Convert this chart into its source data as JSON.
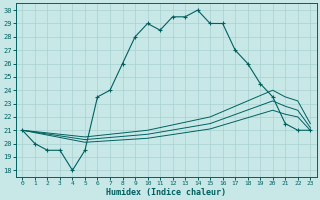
{
  "xlabel": "Humidex (Indice chaleur)",
  "bg_color": "#c8e8e8",
  "grid_color": "#a8d0d0",
  "line_color": "#006060",
  "xlim": [
    -0.5,
    23.5
  ],
  "ylim": [
    17.5,
    30.5
  ],
  "yticks": [
    18,
    19,
    20,
    21,
    22,
    23,
    24,
    25,
    26,
    27,
    28,
    29,
    30
  ],
  "xticks": [
    0,
    1,
    2,
    3,
    4,
    5,
    6,
    7,
    8,
    9,
    10,
    11,
    12,
    13,
    14,
    15,
    16,
    17,
    18,
    19,
    20,
    21,
    22,
    23
  ],
  "main_x": [
    0,
    1,
    2,
    3,
    4,
    5,
    6,
    7,
    8,
    9,
    10,
    11,
    12,
    13,
    14,
    15,
    16,
    17,
    18,
    19,
    20,
    21,
    22,
    23
  ],
  "main_y": [
    21.0,
    20.0,
    19.5,
    19.5,
    18.0,
    19.5,
    23.5,
    24.0,
    26.0,
    28.0,
    29.0,
    28.5,
    29.5,
    29.5,
    30.0,
    29.0,
    29.0,
    27.0,
    26.0,
    24.5,
    23.5,
    21.5,
    21.0,
    21.0
  ],
  "line_a_x": [
    0,
    5,
    10,
    15,
    20,
    21,
    22,
    23
  ],
  "line_a_y": [
    21.0,
    20.5,
    21.0,
    22.0,
    24.0,
    23.5,
    23.2,
    21.5
  ],
  "line_b_x": [
    0,
    5,
    10,
    15,
    20,
    21,
    22,
    23
  ],
  "line_b_y": [
    21.0,
    20.3,
    20.7,
    21.5,
    23.2,
    22.8,
    22.5,
    21.2
  ],
  "line_c_x": [
    0,
    5,
    10,
    15,
    20,
    21,
    22,
    23
  ],
  "line_c_y": [
    21.0,
    20.1,
    20.4,
    21.1,
    22.5,
    22.2,
    22.0,
    21.0
  ]
}
